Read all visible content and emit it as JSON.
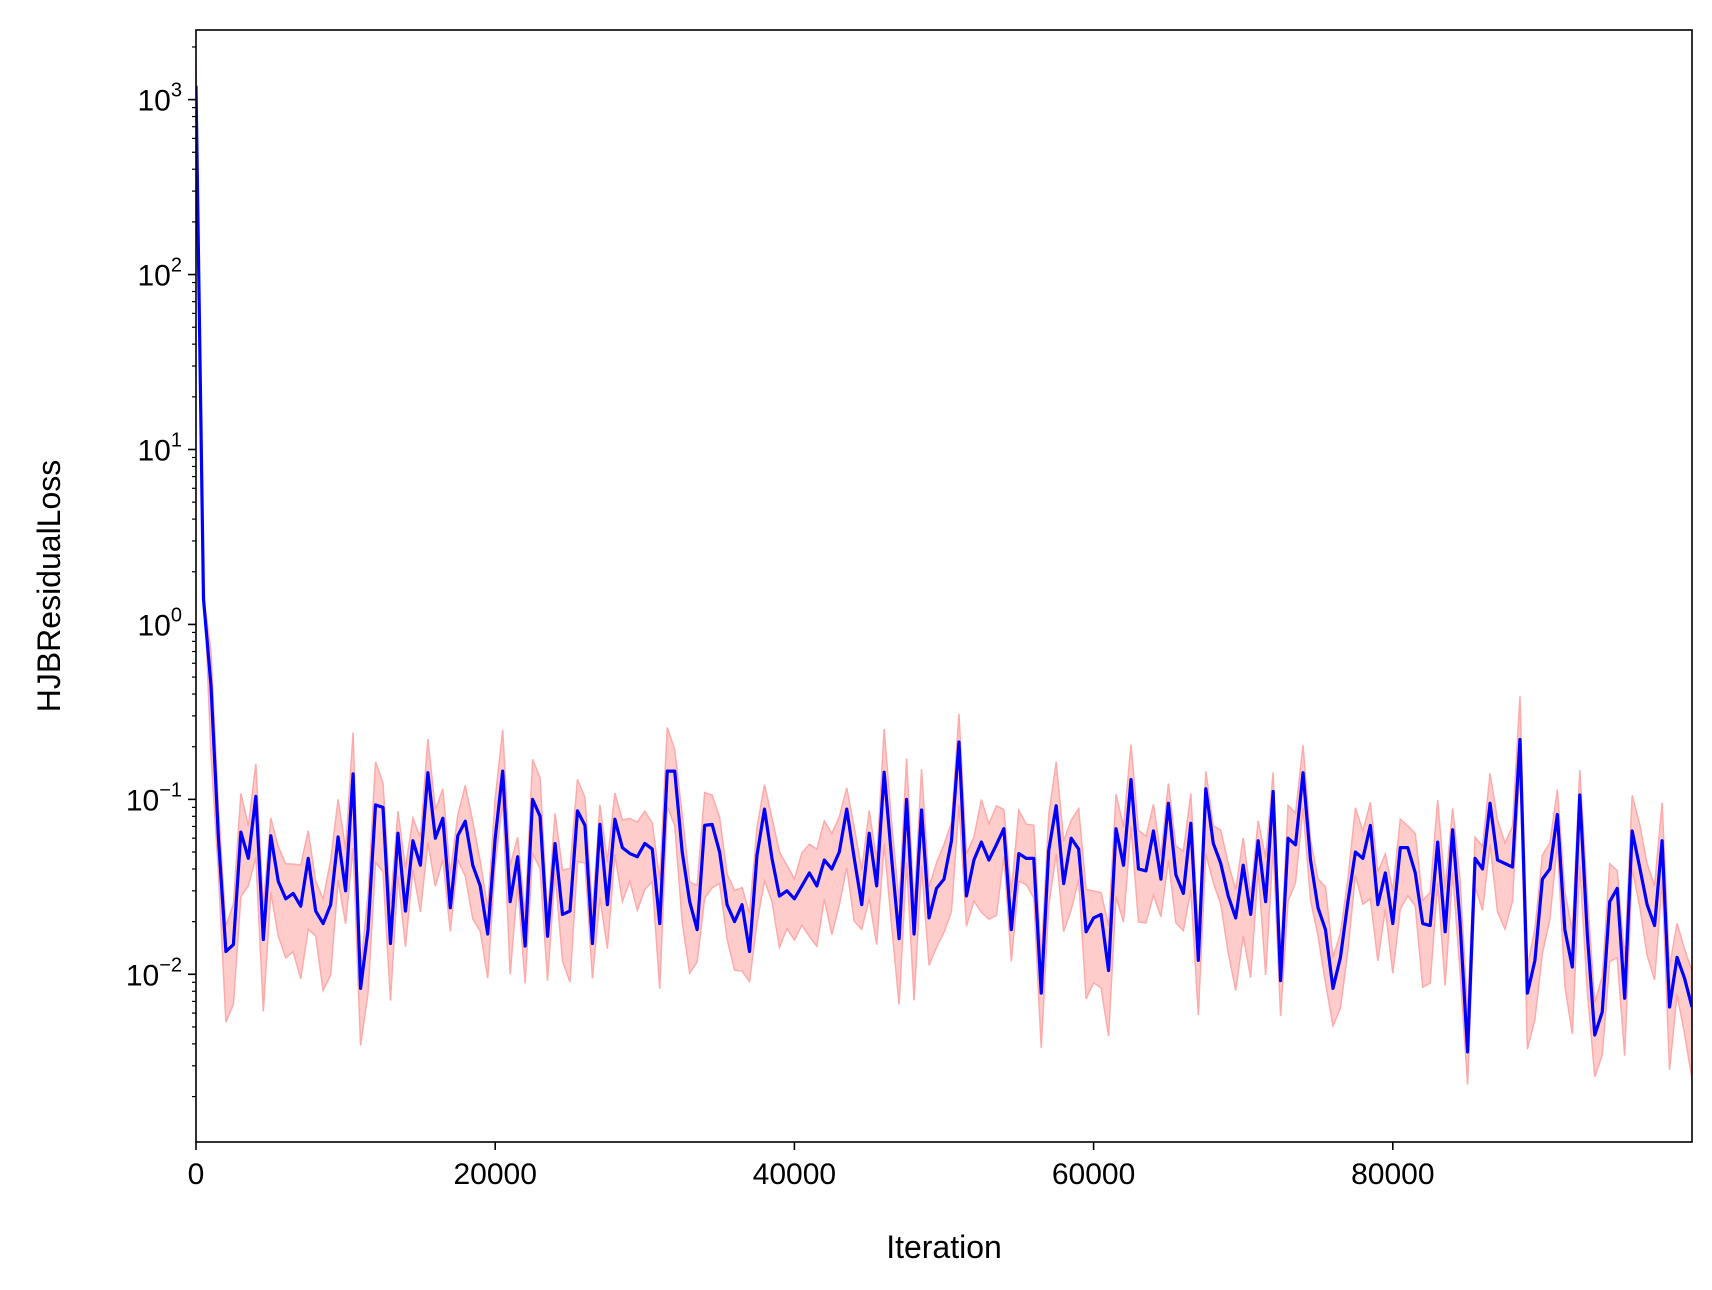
{
  "chart_data": {
    "type": "line",
    "title": "",
    "xlabel": "Iteration",
    "ylabel": "HJBResidualLoss",
    "xlim": [
      0,
      100000
    ],
    "ylim": [
      0.0011,
      2500
    ],
    "yscale": "log",
    "grid": false,
    "legend": "none",
    "x_ticks": [
      {
        "value": 0,
        "label": "0"
      },
      {
        "value": 20000,
        "label": "20000"
      },
      {
        "value": 40000,
        "label": "40000"
      },
      {
        "value": 60000,
        "label": "60000"
      },
      {
        "value": 80000,
        "label": "80000"
      }
    ],
    "y_ticks": [
      {
        "value": 0.01,
        "base": "10",
        "exp": "−2"
      },
      {
        "value": 0.1,
        "base": "10",
        "exp": "−1"
      },
      {
        "value": 1,
        "base": "10",
        "exp": "0"
      },
      {
        "value": 10,
        "base": "10",
        "exp": "1"
      },
      {
        "value": 100,
        "base": "10",
        "exp": "2"
      },
      {
        "value": 1000,
        "base": "10",
        "exp": "3"
      }
    ],
    "colors": {
      "line": "#0000ff",
      "band_fill": "#ffcccc",
      "band_edge": "#ffaaaa",
      "axes": "#000000"
    },
    "series": [
      {
        "role": "mean",
        "x": [
          0,
          500,
          1000,
          1500,
          2000,
          2500,
          3000,
          3500,
          4000,
          4500,
          5000,
          5500,
          6000,
          6500,
          7000,
          7500,
          8000,
          8500,
          9000,
          9500,
          10000,
          10500,
          11000,
          11500,
          12000,
          12500,
          13000,
          13500,
          14000,
          14500,
          15000,
          15500,
          16000,
          16500,
          17000,
          17500,
          18000,
          18500,
          19000,
          19500,
          20000,
          20500,
          21000,
          21500,
          22000,
          22500,
          23000,
          23500,
          24000,
          24500,
          25000,
          25500,
          26000,
          26500,
          27000,
          27500,
          28000,
          28500,
          29000,
          29500,
          30000,
          30500,
          31000,
          31500,
          32000,
          32500,
          33000,
          33500,
          34000,
          34500,
          35000,
          35500,
          36000,
          36500,
          37000,
          37500,
          38000,
          38500,
          39000,
          39500,
          40000,
          40500,
          41000,
          41500,
          42000,
          42500,
          43000,
          43500,
          44000,
          44500,
          45000,
          45500,
          46000,
          46500,
          47000,
          47500,
          48000,
          48500,
          49000,
          49500,
          50000,
          50500,
          51000,
          51500,
          52000,
          52500,
          53000,
          53500,
          54000,
          54500,
          55000,
          55500,
          56000,
          56500,
          57000,
          57500,
          58000,
          58500,
          59000,
          59500,
          60000,
          60500,
          61000,
          61500,
          62000,
          62500,
          63000,
          63500,
          64000,
          64500,
          65000,
          65500,
          66000,
          66500,
          67000,
          67500,
          68000,
          68500,
          69000,
          69500,
          70000,
          70500,
          71000,
          71500,
          72000,
          72500,
          73000,
          73500,
          74000,
          74500,
          75000,
          75500,
          76000,
          76500,
          77000,
          77500,
          78000,
          78500,
          79000,
          79500,
          80000,
          80500,
          81000,
          81500,
          82000,
          82500,
          83000,
          83500,
          84000,
          84500,
          85000,
          85500,
          86000,
          86500,
          87000,
          87500,
          88000,
          88500,
          89000,
          89500,
          90000,
          90500,
          91000,
          91500,
          92000,
          92500,
          93000,
          93500,
          94000,
          94500,
          95000,
          95500,
          96000,
          96500,
          97000,
          97500,
          98000,
          98500,
          99000,
          99500,
          100000
        ],
        "y": [
          1200,
          1.4,
          0.45,
          0.06,
          0.0135,
          0.0148,
          0.065,
          0.046,
          0.104,
          0.0158,
          0.062,
          0.034,
          0.027,
          0.029,
          0.0245,
          0.046,
          0.023,
          0.0195,
          0.025,
          0.061,
          0.03,
          0.14,
          0.0083,
          0.018,
          0.093,
          0.09,
          0.015,
          0.064,
          0.023,
          0.058,
          0.042,
          0.142,
          0.06,
          0.078,
          0.024,
          0.062,
          0.075,
          0.042,
          0.032,
          0.017,
          0.06,
          0.145,
          0.026,
          0.047,
          0.0145,
          0.1,
          0.08,
          0.0165,
          0.056,
          0.022,
          0.023,
          0.086,
          0.071,
          0.015,
          0.072,
          0.025,
          0.077,
          0.053,
          0.049,
          0.047,
          0.056,
          0.052,
          0.0195,
          0.145,
          0.145,
          0.05,
          0.026,
          0.018,
          0.071,
          0.072,
          0.05,
          0.025,
          0.02,
          0.025,
          0.0135,
          0.048,
          0.088,
          0.046,
          0.028,
          0.03,
          0.027,
          0.032,
          0.038,
          0.032,
          0.045,
          0.04,
          0.05,
          0.088,
          0.046,
          0.025,
          0.064,
          0.032,
          0.143,
          0.046,
          0.016,
          0.1,
          0.017,
          0.087,
          0.021,
          0.031,
          0.035,
          0.058,
          0.213,
          0.028,
          0.045,
          0.057,
          0.045,
          0.055,
          0.068,
          0.018,
          0.049,
          0.046,
          0.046,
          0.0078,
          0.051,
          0.092,
          0.033,
          0.06,
          0.052,
          0.0175,
          0.021,
          0.022,
          0.0105,
          0.068,
          0.042,
          0.13,
          0.04,
          0.039,
          0.066,
          0.035,
          0.095,
          0.037,
          0.029,
          0.073,
          0.012,
          0.115,
          0.056,
          0.043,
          0.028,
          0.021,
          0.042,
          0.022,
          0.058,
          0.026,
          0.111,
          0.0092,
          0.06,
          0.055,
          0.142,
          0.045,
          0.024,
          0.018,
          0.0083,
          0.0125,
          0.026,
          0.05,
          0.046,
          0.071,
          0.025,
          0.038,
          0.0195,
          0.053,
          0.053,
          0.038,
          0.0195,
          0.019,
          0.057,
          0.0175,
          0.067,
          0.0195,
          0.0036,
          0.046,
          0.04,
          0.095,
          0.045,
          0.043,
          0.041,
          0.22,
          0.0078,
          0.012,
          0.035,
          0.04,
          0.082,
          0.018,
          0.011,
          0.106,
          0.017,
          0.0045,
          0.0061,
          0.026,
          0.031,
          0.0073,
          0.066,
          0.041,
          0.025,
          0.019,
          0.058,
          0.0065,
          0.0125,
          0.0095,
          0.0065
        ]
      }
    ]
  }
}
